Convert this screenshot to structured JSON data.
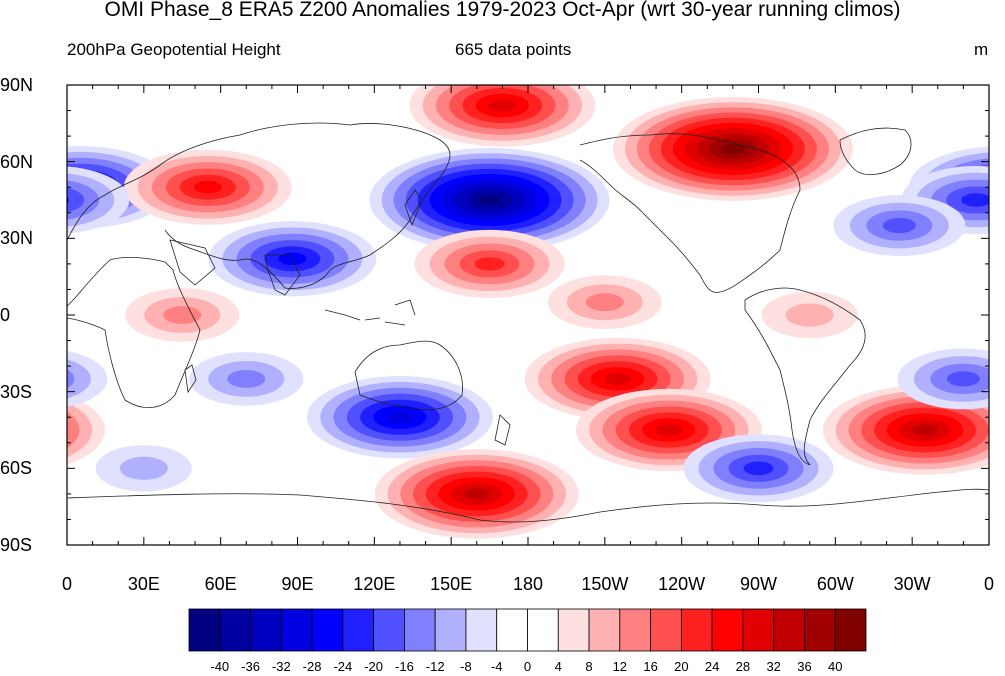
{
  "title": "OMI Phase_8 ERA5 Z200 Anomalies 1979-2023 Oct-Apr (wrt 30-year running climos)",
  "subtitle_left": "200hPa Geopotential Height",
  "subtitle_center": "665 data points",
  "units": "m",
  "lat_labels": [
    "90N",
    "60N",
    "30N",
    "0",
    "30S",
    "60S",
    "90S"
  ],
  "lon_labels": [
    "0",
    "30E",
    "60E",
    "90E",
    "120E",
    "150E",
    "180",
    "150W",
    "120W",
    "90W",
    "60W",
    "30W",
    "0"
  ],
  "colorbar": {
    "labels": [
      "-40",
      "-36",
      "-32",
      "-28",
      "-24",
      "-20",
      "-16",
      "-12",
      "-8",
      "-4",
      "0",
      "4",
      "8",
      "12",
      "16",
      "20",
      "24",
      "28",
      "32",
      "36",
      "40"
    ],
    "colors": [
      "#000080",
      "#0000a0",
      "#0000c0",
      "#0000e0",
      "#0000ff",
      "#2020ff",
      "#5050ff",
      "#8080ff",
      "#b0b0ff",
      "#e0e0ff",
      "#ffffff",
      "#ffffff",
      "#ffe0e0",
      "#ffb0b0",
      "#ff8080",
      "#ff5050",
      "#ff2020",
      "#ff0000",
      "#e00000",
      "#c00000",
      "#a00000",
      "#800000"
    ]
  },
  "map_data": {
    "type": "filled-contour",
    "variable": "200hPa Geopotential Height anomaly",
    "lon_range": [
      0,
      360
    ],
    "lat_range": [
      -90,
      90
    ],
    "anomaly_centers": [
      {
        "lon": 5,
        "lat": 50,
        "value": -28
      },
      {
        "lon": 55,
        "lat": 50,
        "value": 24
      },
      {
        "lon": 88,
        "lat": 22,
        "value": -24
      },
      {
        "lon": 45,
        "lat": 0,
        "value": 12
      },
      {
        "lon": 165,
        "lat": 45,
        "value": -40
      },
      {
        "lon": 260,
        "lat": 65,
        "value": 40
      },
      {
        "lon": 170,
        "lat": 82,
        "value": 28
      },
      {
        "lon": 355,
        "lat": 45,
        "value": -20
      },
      {
        "lon": 325,
        "lat": 35,
        "value": -16
      },
      {
        "lon": 165,
        "lat": 20,
        "value": 20
      },
      {
        "lon": 210,
        "lat": 5,
        "value": 12
      },
      {
        "lon": 215,
        "lat": -25,
        "value": 28
      },
      {
        "lon": 235,
        "lat": -45,
        "value": 28
      },
      {
        "lon": 130,
        "lat": -40,
        "value": -28
      },
      {
        "lon": 160,
        "lat": -70,
        "value": 32
      },
      {
        "lon": 270,
        "lat": -60,
        "value": -20
      },
      {
        "lon": 335,
        "lat": -45,
        "value": 32
      },
      {
        "lon": 70,
        "lat": -25,
        "value": -12
      },
      {
        "lon": 350,
        "lat": -25,
        "value": -16
      },
      {
        "lon": 290,
        "lat": 0,
        "value": 8
      },
      {
        "lon": 30,
        "lat": -60,
        "value": -8
      }
    ]
  }
}
